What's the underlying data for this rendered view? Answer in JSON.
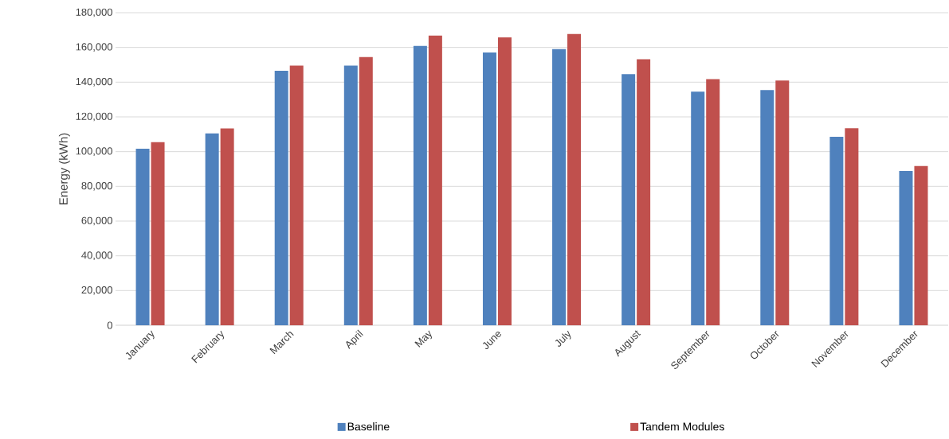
{
  "chart_data": {
    "type": "bar",
    "ylabel": "Energy (kWh)",
    "categories": [
      "January",
      "February",
      "March",
      "April",
      "May",
      "June",
      "July",
      "August",
      "September",
      "October",
      "November",
      "December"
    ],
    "series": [
      {
        "name": "Baseline",
        "color": "#4f81bd",
        "values": [
          101700,
          110500,
          146600,
          149500,
          160900,
          157100,
          159000,
          144600,
          134500,
          135400,
          108600,
          88800
        ]
      },
      {
        "name": "Tandem Modules",
        "color": "#c0504d",
        "values": [
          105500,
          113300,
          149500,
          154500,
          166800,
          165800,
          167700,
          153200,
          141800,
          140900,
          113500,
          91700
        ]
      }
    ],
    "ylim": [
      0,
      180000
    ],
    "yticks": [
      {
        "value": 0,
        "label": "0"
      },
      {
        "value": 20000,
        "label": "20,000"
      },
      {
        "value": 40000,
        "label": "40,000"
      },
      {
        "value": 60000,
        "label": "60,000"
      },
      {
        "value": 80000,
        "label": "80,000"
      },
      {
        "value": 100000,
        "label": "100,000"
      },
      {
        "value": 120000,
        "label": "120,000"
      },
      {
        "value": 140000,
        "label": "140,000"
      },
      {
        "value": 160000,
        "label": "160,000"
      },
      {
        "value": 180000,
        "label": "180,000"
      }
    ],
    "grid": "y",
    "legend": "bottom"
  }
}
